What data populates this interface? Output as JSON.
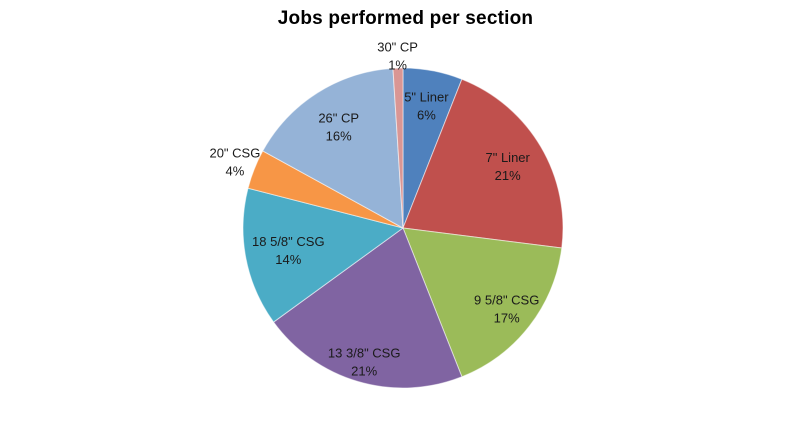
{
  "chart_data": {
    "type": "pie",
    "title": "Jobs performed per section",
    "categories": [
      "5\" Liner",
      "7\" Liner",
      "9 5/8\" CSG",
      "13 3/8\" CSG",
      "18 5/8\" CSG",
      "20\" CSG",
      "26\" CP",
      "30\" CP"
    ],
    "values": [
      6,
      21,
      17,
      21,
      14,
      4,
      16,
      1
    ],
    "value_unit": "%",
    "data_labels": [
      "5\" Liner 6%",
      "7\" Liner 21%",
      "9 5/8\" CSG 17%",
      "13 3/8\" CSG 21%",
      "18 5/8\" CSG 14%",
      "20\" CSG 4%",
      "26\" CP 16%",
      "30\" CP 1%"
    ],
    "colors": [
      "#4F81BD",
      "#C0504D",
      "#9BBB59",
      "#8064A2",
      "#4BACC6",
      "#F79646",
      "#95B3D7",
      "#D99694"
    ],
    "start_angle_deg": 0,
    "direction": "clockwise",
    "legend": "none",
    "label_position": [
      "inside",
      "inside",
      "inside",
      "inside",
      "inside",
      "outside",
      "inside",
      "outside"
    ],
    "label_radius_frac": [
      0.78,
      0.76,
      0.82,
      0.87,
      0.73,
      1.13,
      0.75,
      1.08
    ]
  }
}
